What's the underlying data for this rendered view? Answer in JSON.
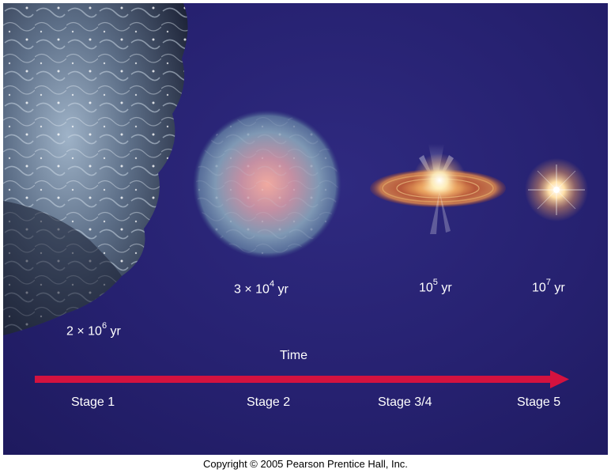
{
  "time_axis_label": "Time",
  "stages": [
    {
      "label": "Stage 1",
      "time_base": "2 × 10",
      "time_exp": "6",
      "time_unit": " yr"
    },
    {
      "label": "Stage 2",
      "time_base": "3 × 10",
      "time_exp": "4",
      "time_unit": " yr"
    },
    {
      "label": "Stage 3/4",
      "time_base": "10",
      "time_exp": "5",
      "time_unit": " yr"
    },
    {
      "label": "Stage 5",
      "time_base": "10",
      "time_exp": "7",
      "time_unit": " yr"
    }
  ],
  "copyright": "Copyright © 2005 Pearson Prentice Hall, Inc.",
  "colors": {
    "background": "#262170",
    "arrow": "#d4123f",
    "text": "#ffffff"
  }
}
